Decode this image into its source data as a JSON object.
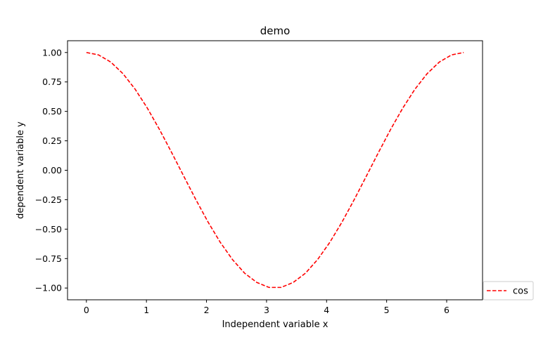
{
  "chart_data": {
    "type": "line",
    "title": "demo",
    "xlabel": "Independent variable x",
    "ylabel": "dependent variable y",
    "xlim": [
      -0.3142,
      6.5973
    ],
    "ylim": [
      -1.1,
      1.1
    ],
    "xticks": [
      0,
      1,
      2,
      3,
      4,
      5,
      6
    ],
    "yticks": [
      -1.0,
      -0.75,
      -0.5,
      -0.25,
      0.0,
      0.25,
      0.5,
      0.75,
      1.0
    ],
    "ytick_labels": [
      "−1.00",
      "−0.75",
      "−0.50",
      "−0.25",
      "0.00",
      "0.25",
      "0.50",
      "0.75",
      "1.00"
    ],
    "grid": false,
    "legend": {
      "placement": "lower-right-outside"
    },
    "series": [
      {
        "name": "cos",
        "color": "#ff0000",
        "linestyle": "dashed",
        "x": [
          0.0,
          0.2027,
          0.4054,
          0.6081,
          0.8107,
          1.0134,
          1.2161,
          1.4188,
          1.6215,
          1.8242,
          2.0268,
          2.2295,
          2.4322,
          2.6349,
          2.8376,
          3.0403,
          3.2429,
          3.4456,
          3.6483,
          3.851,
          4.0537,
          4.2564,
          4.459,
          4.6617,
          4.8644,
          5.0671,
          5.2698,
          5.4725,
          5.6751,
          5.8778,
          6.0805,
          6.2832
        ],
        "y": [
          1.0,
          0.9795,
          0.9189,
          0.8208,
          0.689,
          0.5289,
          0.3473,
          0.1514,
          -0.0506,
          -0.2506,
          -0.4404,
          -0.6121,
          -0.758,
          -0.874,
          -0.9524,
          -0.9949,
          -0.9949,
          -0.9524,
          -0.874,
          -0.758,
          -0.6121,
          -0.4404,
          -0.2506,
          -0.0506,
          0.1514,
          0.3473,
          0.5289,
          0.689,
          0.8208,
          0.9189,
          0.9795,
          1.0
        ]
      }
    ]
  }
}
